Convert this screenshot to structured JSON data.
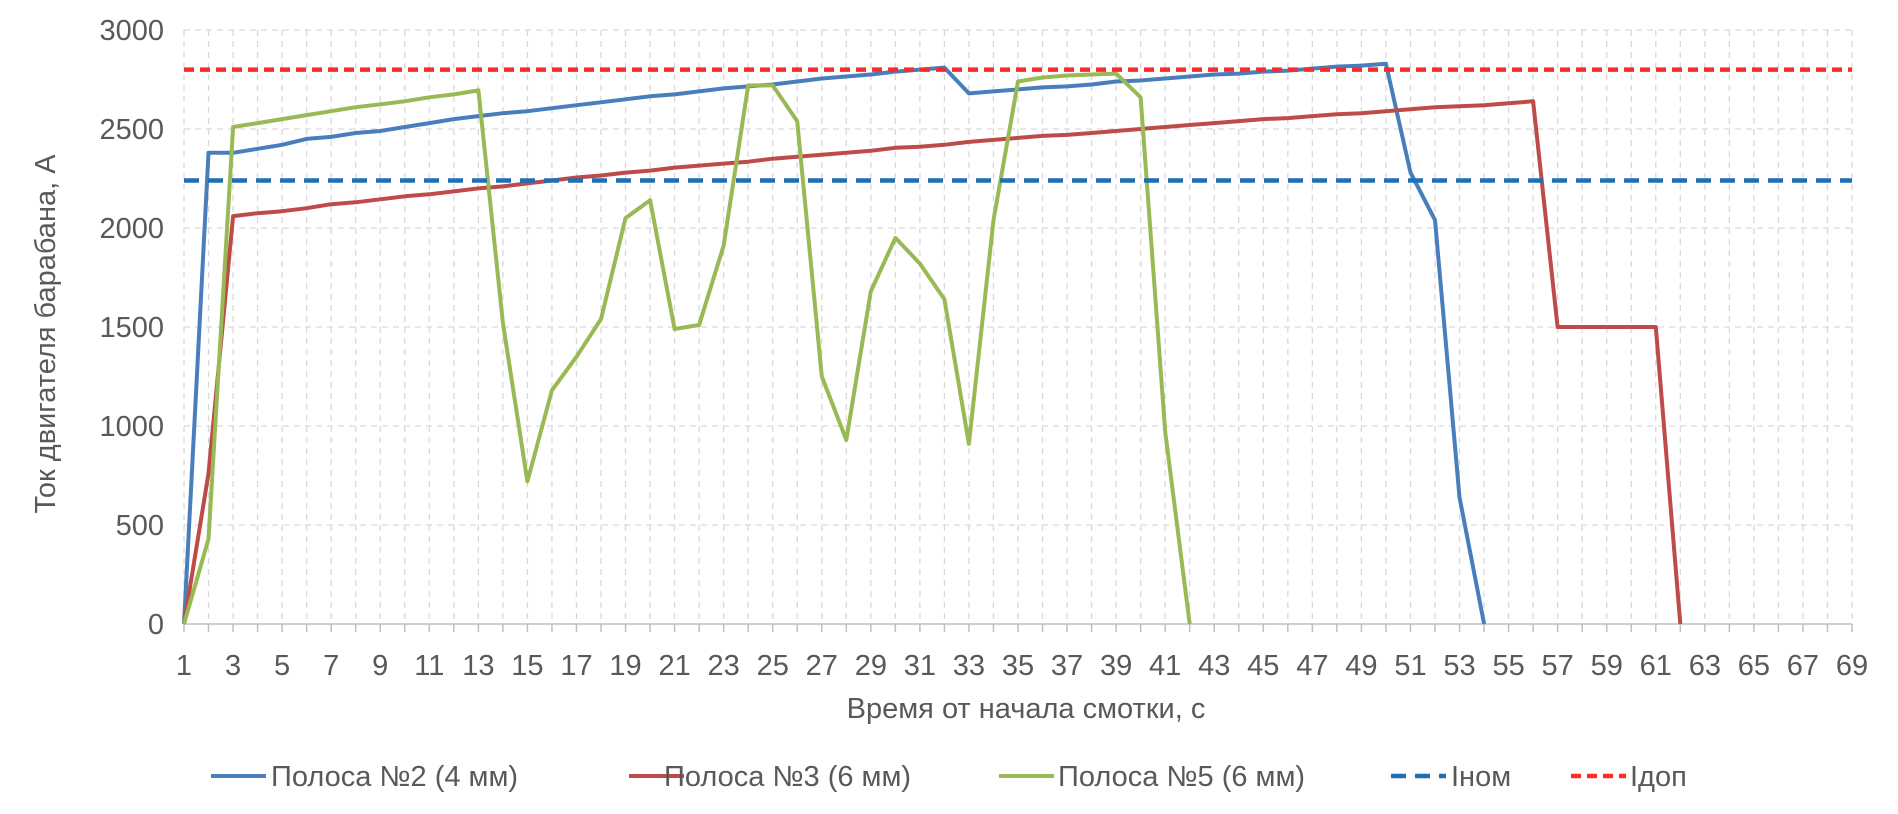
{
  "chart_data": {
    "type": "line",
    "title": "",
    "xlabel": "Время от начала смотки, с",
    "ylabel": "Ток двигателя барабана, А",
    "xlim": [
      1,
      69
    ],
    "ylim": [
      0,
      3000
    ],
    "y_ticks": [
      0,
      500,
      1000,
      1500,
      2000,
      2500,
      3000
    ],
    "x_ticks": [
      1,
      3,
      5,
      7,
      9,
      11,
      13,
      15,
      17,
      19,
      21,
      23,
      25,
      27,
      29,
      31,
      33,
      35,
      37,
      39,
      41,
      43,
      45,
      47,
      49,
      51,
      53,
      55,
      57,
      59,
      61,
      63,
      65,
      67,
      69
    ],
    "grid": true,
    "legend_position": "bottom",
    "series": [
      {
        "name": "Полоса №2 (4 мм)",
        "color": "#4a7ebb",
        "style": "solid",
        "points": [
          [
            1,
            0
          ],
          [
            2,
            2380
          ],
          [
            3,
            2380
          ],
          [
            4,
            2400
          ],
          [
            5,
            2420
          ],
          [
            6,
            2450
          ],
          [
            7,
            2460
          ],
          [
            8,
            2480
          ],
          [
            9,
            2490
          ],
          [
            10,
            2510
          ],
          [
            11,
            2530
          ],
          [
            12,
            2550
          ],
          [
            13,
            2565
          ],
          [
            14,
            2580
          ],
          [
            15,
            2590
          ],
          [
            16,
            2605
          ],
          [
            17,
            2620
          ],
          [
            18,
            2635
          ],
          [
            19,
            2650
          ],
          [
            20,
            2665
          ],
          [
            21,
            2675
          ],
          [
            22,
            2690
          ],
          [
            23,
            2705
          ],
          [
            24,
            2715
          ],
          [
            25,
            2725
          ],
          [
            26,
            2740
          ],
          [
            27,
            2755
          ],
          [
            28,
            2765
          ],
          [
            29,
            2775
          ],
          [
            30,
            2790
          ],
          [
            31,
            2800
          ],
          [
            32,
            2810
          ],
          [
            33,
            2680
          ],
          [
            34,
            2690
          ],
          [
            35,
            2700
          ],
          [
            36,
            2710
          ],
          [
            37,
            2715
          ],
          [
            38,
            2725
          ],
          [
            39,
            2740
          ],
          [
            40,
            2745
          ],
          [
            41,
            2755
          ],
          [
            42,
            2765
          ],
          [
            43,
            2775
          ],
          [
            44,
            2780
          ],
          [
            45,
            2790
          ],
          [
            46,
            2795
          ],
          [
            47,
            2805
          ],
          [
            48,
            2815
          ],
          [
            49,
            2820
          ],
          [
            50,
            2830
          ],
          [
            51,
            2280
          ],
          [
            52,
            2040
          ],
          [
            53,
            640
          ],
          [
            54,
            0
          ]
        ]
      },
      {
        "name": "Полоса №3 (6 мм)",
        "color": "#be4b48",
        "style": "solid",
        "points": [
          [
            1,
            0
          ],
          [
            2,
            760
          ],
          [
            3,
            2060
          ],
          [
            4,
            2075
          ],
          [
            5,
            2085
          ],
          [
            6,
            2100
          ],
          [
            7,
            2120
          ],
          [
            8,
            2130
          ],
          [
            9,
            2145
          ],
          [
            10,
            2160
          ],
          [
            11,
            2170
          ],
          [
            12,
            2185
          ],
          [
            13,
            2200
          ],
          [
            14,
            2210
          ],
          [
            15,
            2225
          ],
          [
            16,
            2240
          ],
          [
            17,
            2255
          ],
          [
            18,
            2265
          ],
          [
            19,
            2280
          ],
          [
            20,
            2290
          ],
          [
            21,
            2305
          ],
          [
            22,
            2315
          ],
          [
            23,
            2325
          ],
          [
            24,
            2335
          ],
          [
            25,
            2350
          ],
          [
            26,
            2360
          ],
          [
            27,
            2370
          ],
          [
            28,
            2380
          ],
          [
            29,
            2390
          ],
          [
            30,
            2405
          ],
          [
            31,
            2410
          ],
          [
            32,
            2420
          ],
          [
            33,
            2435
          ],
          [
            34,
            2445
          ],
          [
            35,
            2455
          ],
          [
            36,
            2465
          ],
          [
            37,
            2470
          ],
          [
            38,
            2480
          ],
          [
            39,
            2490
          ],
          [
            40,
            2500
          ],
          [
            41,
            2510
          ],
          [
            42,
            2520
          ],
          [
            43,
            2530
          ],
          [
            44,
            2540
          ],
          [
            45,
            2550
          ],
          [
            46,
            2555
          ],
          [
            47,
            2565
          ],
          [
            48,
            2575
          ],
          [
            49,
            2580
          ],
          [
            50,
            2590
          ],
          [
            51,
            2600
          ],
          [
            52,
            2610
          ],
          [
            53,
            2615
          ],
          [
            54,
            2620
          ],
          [
            55,
            2630
          ],
          [
            56,
            2640
          ],
          [
            57,
            1500
          ],
          [
            58,
            1500
          ],
          [
            59,
            1500
          ],
          [
            60,
            1500
          ],
          [
            61,
            1500
          ],
          [
            62,
            0
          ]
        ]
      },
      {
        "name": "Полоса №5 (6 мм)",
        "color": "#98b954",
        "style": "solid",
        "points": [
          [
            1,
            0
          ],
          [
            2,
            430
          ],
          [
            3,
            2510
          ],
          [
            4,
            2530
          ],
          [
            5,
            2550
          ],
          [
            6,
            2570
          ],
          [
            7,
            2590
          ],
          [
            8,
            2610
          ],
          [
            9,
            2625
          ],
          [
            10,
            2640
          ],
          [
            11,
            2660
          ],
          [
            12,
            2675
          ],
          [
            13,
            2695
          ],
          [
            14,
            1520
          ],
          [
            15,
            720
          ],
          [
            16,
            1180
          ],
          [
            17,
            1350
          ],
          [
            18,
            1540
          ],
          [
            19,
            2050
          ],
          [
            20,
            2140
          ],
          [
            21,
            1490
          ],
          [
            22,
            1510
          ],
          [
            23,
            1910
          ],
          [
            24,
            2720
          ],
          [
            25,
            2720
          ],
          [
            26,
            2540
          ],
          [
            27,
            1250
          ],
          [
            28,
            930
          ],
          [
            29,
            1680
          ],
          [
            30,
            1950
          ],
          [
            31,
            1820
          ],
          [
            32,
            1640
          ],
          [
            33,
            910
          ],
          [
            34,
            2040
          ],
          [
            35,
            2740
          ],
          [
            36,
            2760
          ],
          [
            37,
            2770
          ],
          [
            38,
            2775
          ],
          [
            39,
            2780
          ],
          [
            40,
            2660
          ],
          [
            41,
            970
          ],
          [
            42,
            0
          ]
        ]
      },
      {
        "name": "Iном",
        "color": "#1f6fb4",
        "style": "dashed",
        "points": [
          [
            1,
            2240
          ],
          [
            69,
            2240
          ]
        ]
      },
      {
        "name": "Iдоп",
        "color": "#ff2a2a",
        "style": "dotted",
        "points": [
          [
            1,
            2800
          ],
          [
            69,
            2800
          ]
        ]
      }
    ]
  }
}
